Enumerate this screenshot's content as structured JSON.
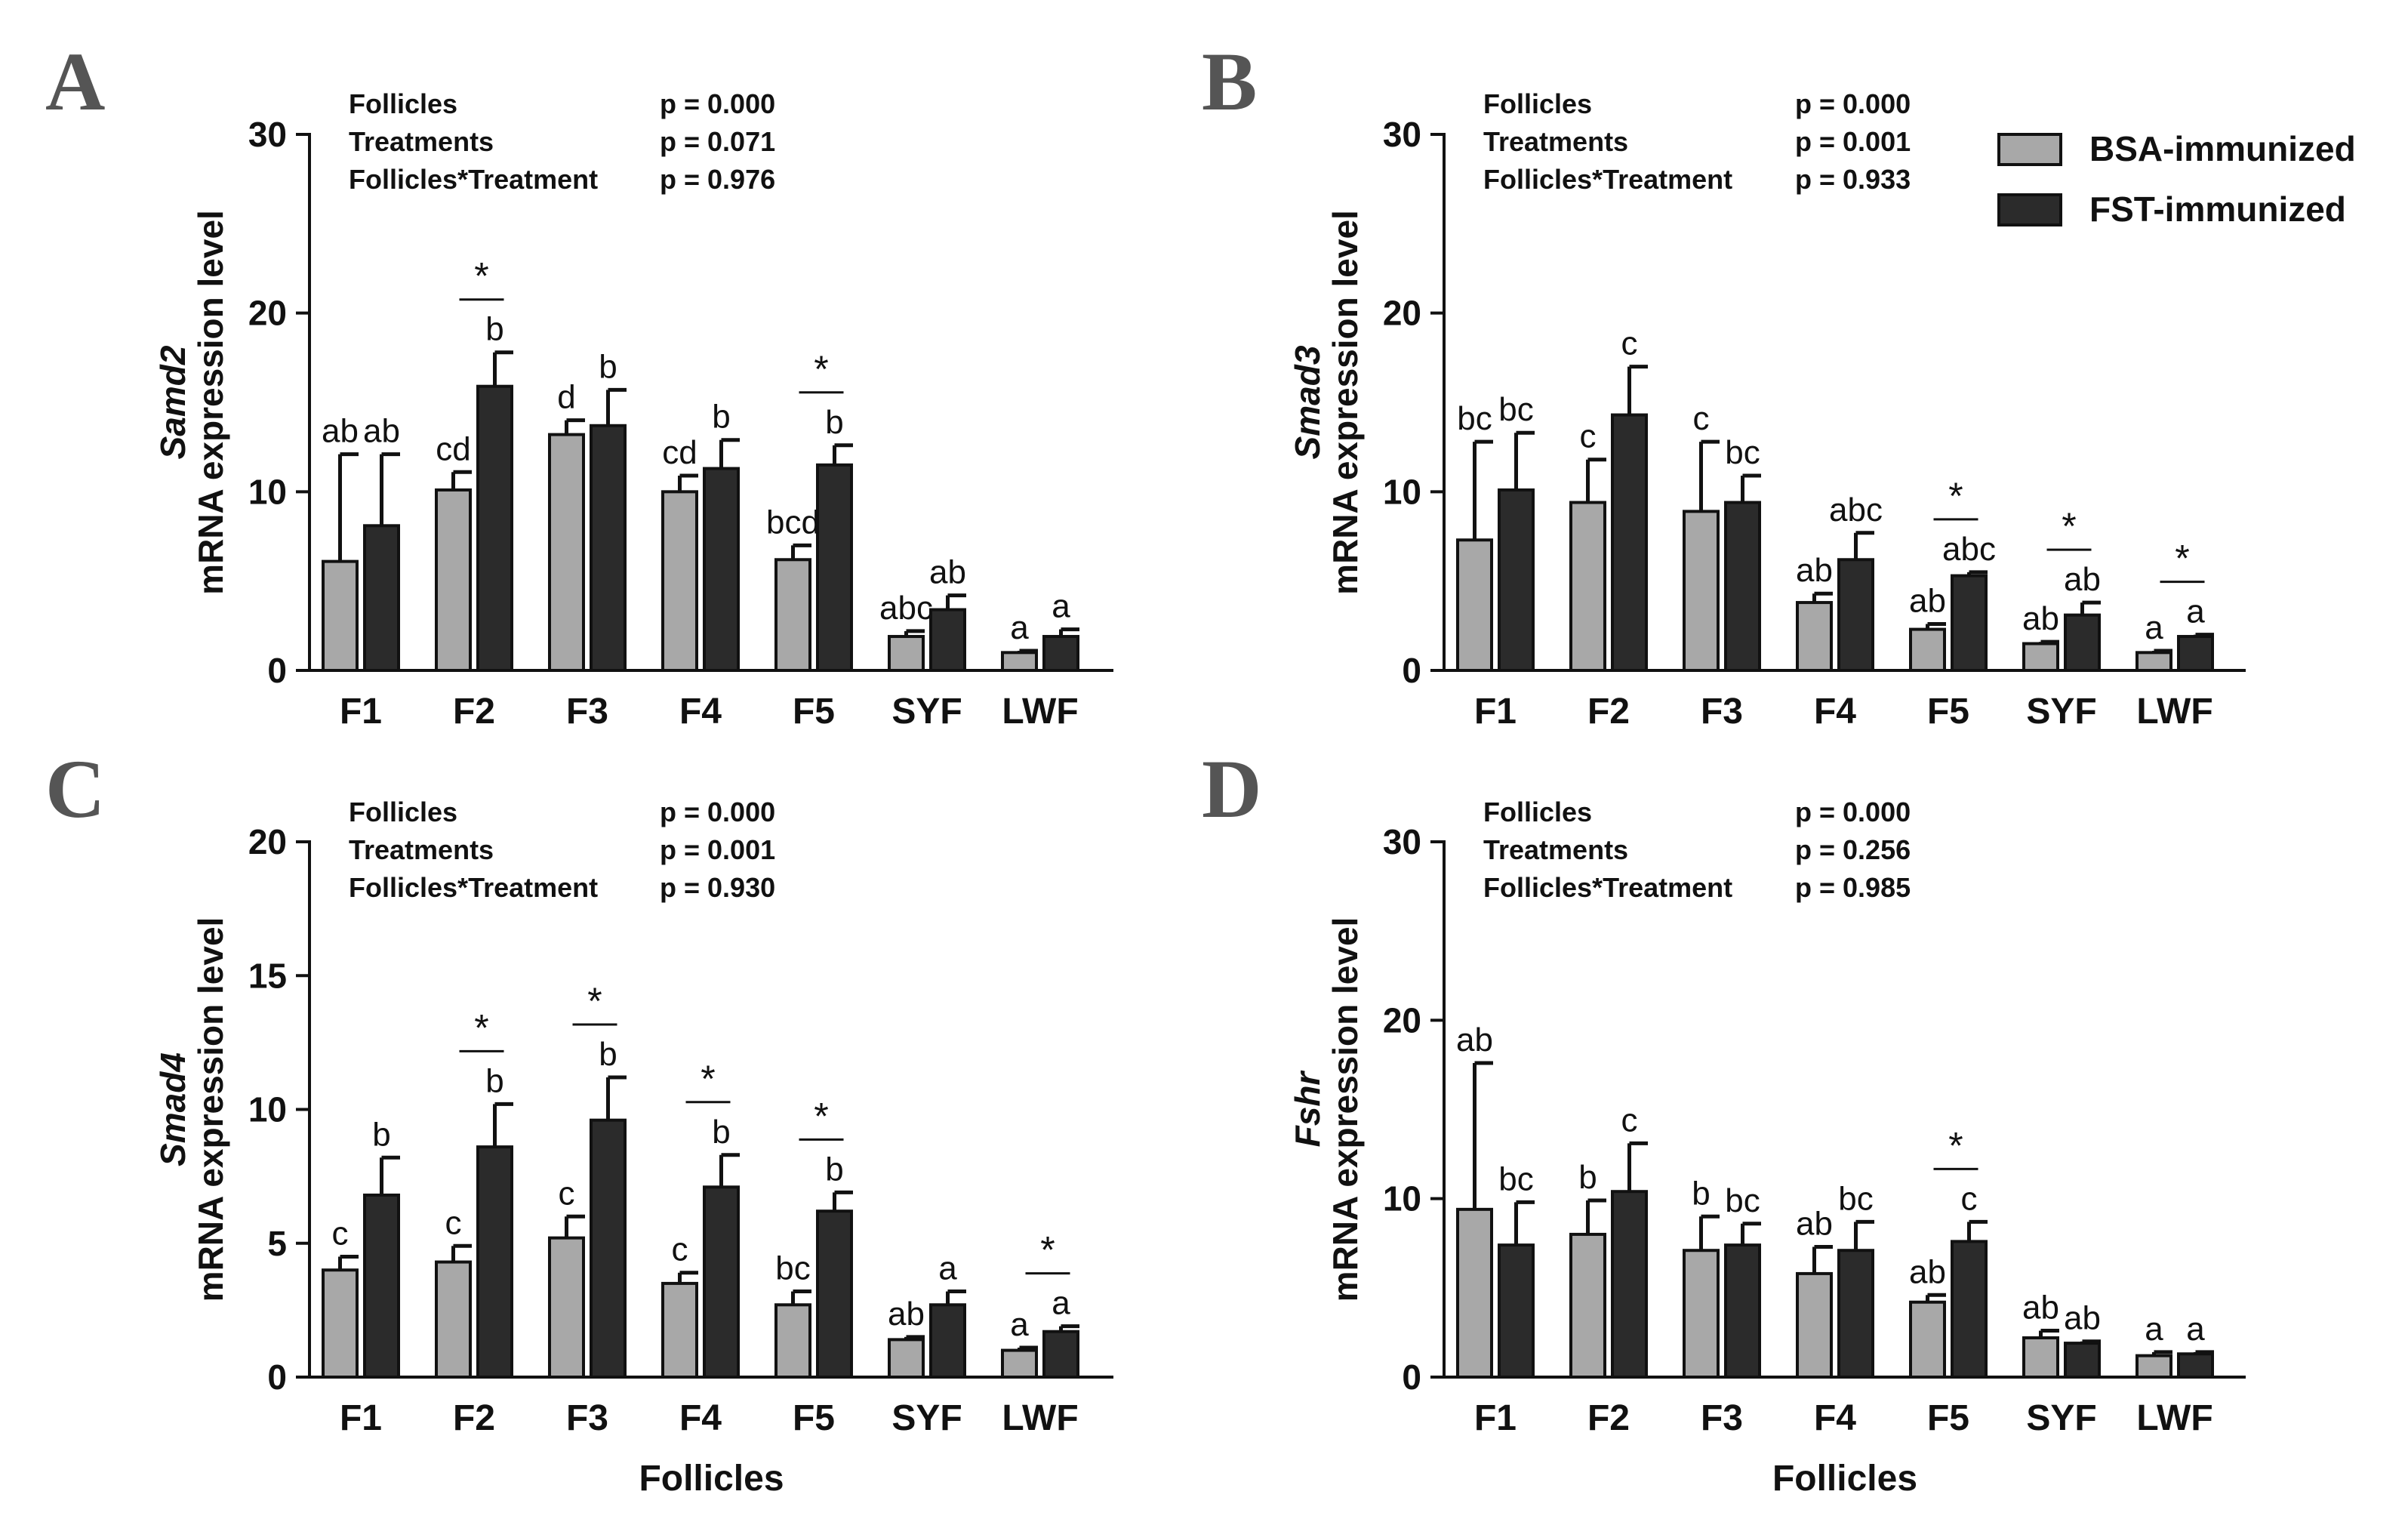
{
  "legend": {
    "bsa_label": "BSA-immunized",
    "fst_label": "FST-immunized",
    "bsa_color": "#a8a8a8",
    "fst_color": "#2b2b2b"
  },
  "chart_data": [
    {
      "type": "bar",
      "panel_label": "A",
      "gene": "Samd2",
      "ylabel_line2": "mRNA expression level",
      "xlabel": "",
      "ylim": [
        0,
        30
      ],
      "yticks": [
        0,
        10,
        20,
        30
      ],
      "categories": [
        "F1",
        "F2",
        "F3",
        "F4",
        "F5",
        "SYF",
        "LWF"
      ],
      "stats": [
        {
          "label": "Follicles",
          "p": "p = 0.000"
        },
        {
          "label": "Treatments",
          "p": "p = 0.071"
        },
        {
          "label": "Follicles*Treatment",
          "p": "p = 0.976"
        }
      ],
      "series": [
        {
          "name": "BSA-immunized",
          "values": [
            6.1,
            10.1,
            13.2,
            10.0,
            6.2,
            1.9,
            1.0
          ],
          "errors": [
            6.0,
            1.0,
            0.8,
            0.9,
            0.8,
            0.3,
            0.1
          ],
          "letters": [
            "ab",
            "cd",
            "d",
            "cd",
            "bcd",
            "abc",
            "a"
          ]
        },
        {
          "name": "FST-immunized",
          "values": [
            8.1,
            15.9,
            13.7,
            11.3,
            11.5,
            3.4,
            1.9
          ],
          "errors": [
            4.0,
            1.9,
            2.0,
            1.6,
            1.1,
            0.8,
            0.4
          ],
          "letters": [
            "ab",
            "b",
            "b",
            "b",
            "b",
            "ab",
            "a"
          ]
        }
      ],
      "significant": [
        false,
        true,
        false,
        false,
        true,
        false,
        false
      ],
      "star": "*"
    },
    {
      "type": "bar",
      "panel_label": "B",
      "gene": "Smad3",
      "ylabel_line2": "mRNA expression level",
      "xlabel": "",
      "ylim": [
        0,
        30
      ],
      "yticks": [
        0,
        10,
        20,
        30
      ],
      "categories": [
        "F1",
        "F2",
        "F3",
        "F4",
        "F5",
        "SYF",
        "LWF"
      ],
      "stats": [
        {
          "label": "Follicles",
          "p": "p = 0.000"
        },
        {
          "label": "Treatments",
          "p": "p = 0.001"
        },
        {
          "label": "Follicles*Treatment",
          "p": "p = 0.933"
        }
      ],
      "series": [
        {
          "name": "BSA-immunized",
          "values": [
            7.3,
            9.4,
            8.9,
            3.8,
            2.3,
            1.5,
            1.0
          ],
          "errors": [
            5.5,
            2.4,
            3.9,
            0.5,
            0.3,
            0.1,
            0.1
          ],
          "letters": [
            "bc",
            "c",
            "c",
            "ab",
            "ab",
            "ab",
            "a"
          ]
        },
        {
          "name": "FST-immunized",
          "values": [
            10.1,
            14.3,
            9.4,
            6.2,
            5.3,
            3.1,
            1.9
          ],
          "errors": [
            3.2,
            2.7,
            1.5,
            1.5,
            0.2,
            0.7,
            0.1
          ],
          "letters": [
            "bc",
            "c",
            "bc",
            "abc",
            "abc",
            "ab",
            "a"
          ]
        }
      ],
      "significant": [
        false,
        false,
        false,
        false,
        true,
        true,
        true
      ],
      "star": "*"
    },
    {
      "type": "bar",
      "panel_label": "C",
      "gene": "Smad4",
      "ylabel_line2": "mRNA expression level",
      "xlabel": "Follicles",
      "ylim": [
        0,
        20
      ],
      "yticks": [
        0,
        5,
        10,
        15,
        20
      ],
      "categories": [
        "F1",
        "F2",
        "F3",
        "F4",
        "F5",
        "SYF",
        "LWF"
      ],
      "stats": [
        {
          "label": "Follicles",
          "p": "p = 0.000"
        },
        {
          "label": "Treatments",
          "p": "p = 0.001"
        },
        {
          "label": "Follicles*Treatment",
          "p": "p = 0.930"
        }
      ],
      "series": [
        {
          "name": "BSA-immunized",
          "values": [
            4.0,
            4.3,
            5.2,
            3.5,
            2.7,
            1.4,
            1.0
          ],
          "errors": [
            0.5,
            0.6,
            0.8,
            0.4,
            0.5,
            0.1,
            0.1
          ],
          "letters": [
            "c",
            "c",
            "c",
            "c",
            "bc",
            "ab",
            "a"
          ]
        },
        {
          "name": "FST-immunized",
          "values": [
            6.8,
            8.6,
            9.6,
            7.1,
            6.2,
            2.7,
            1.7
          ],
          "errors": [
            1.4,
            1.6,
            1.6,
            1.2,
            0.7,
            0.5,
            0.2
          ],
          "letters": [
            "b",
            "b",
            "b",
            "b",
            "b",
            "a",
            "a"
          ]
        }
      ],
      "significant": [
        false,
        true,
        true,
        true,
        true,
        false,
        true
      ],
      "star": "*"
    },
    {
      "type": "bar",
      "panel_label": "D",
      "gene": "Fshr",
      "ylabel_line2": "mRNA expression level",
      "xlabel": "Follicles",
      "ylim": [
        0,
        30
      ],
      "yticks": [
        0,
        10,
        20,
        30
      ],
      "categories": [
        "F1",
        "F2",
        "F3",
        "F4",
        "F5",
        "SYF",
        "LWF"
      ],
      "stats": [
        {
          "label": "Follicles",
          "p": "p = 0.000"
        },
        {
          "label": "Treatments",
          "p": "p = 0.256"
        },
        {
          "label": "Follicles*Treatment",
          "p": "p = 0.985"
        }
      ],
      "series": [
        {
          "name": "BSA-immunized",
          "values": [
            9.4,
            8.0,
            7.1,
            5.8,
            4.2,
            2.2,
            1.2
          ],
          "errors": [
            8.2,
            1.9,
            1.9,
            1.5,
            0.4,
            0.4,
            0.2
          ],
          "letters": [
            "ab",
            "b",
            "b",
            "ab",
            "ab",
            "ab",
            "a"
          ]
        },
        {
          "name": "FST-immunized",
          "values": [
            7.4,
            10.4,
            7.4,
            7.1,
            7.6,
            1.9,
            1.3
          ],
          "errors": [
            2.4,
            2.7,
            1.2,
            1.6,
            1.1,
            0.1,
            0.1
          ],
          "letters": [
            "bc",
            "c",
            "bc",
            "bc",
            "c",
            "ab",
            "a"
          ]
        }
      ],
      "significant": [
        false,
        false,
        false,
        false,
        true,
        false,
        false
      ],
      "star": "*"
    }
  ]
}
